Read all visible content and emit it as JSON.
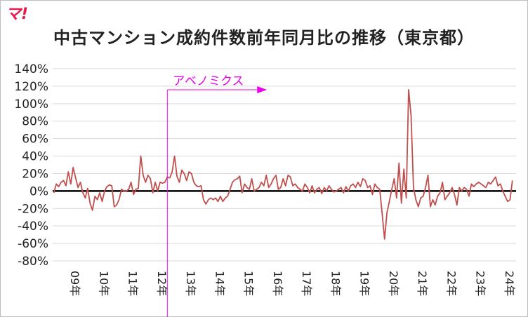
{
  "logo": "マ!",
  "chart_data": {
    "type": "line",
    "title": "中古マンション成約件数前年同月比の推移（東京都）",
    "y_tick_labels": [
      "140%",
      "120%",
      "100%",
      "80%",
      "60%",
      "40%",
      "20%",
      "0%",
      "-20%",
      "-40%",
      "-60%",
      "-80%"
    ],
    "x_tick_labels": [
      "09年",
      "10年",
      "11年",
      "12年",
      "13年",
      "14年",
      "15年",
      "16年",
      "17年",
      "18年",
      "19年",
      "20年",
      "21年",
      "22年",
      "23年",
      "24年"
    ],
    "ylim": [
      -80,
      140
    ],
    "grid": true,
    "legend": "none",
    "series": [
      {
        "color": "#c0504d",
        "start": "2009-01",
        "values": [
          -2,
          8,
          5,
          10,
          12,
          6,
          22,
          8,
          27,
          15,
          4,
          10,
          -2,
          -8,
          3,
          -14,
          -22,
          -6,
          -10,
          -2,
          -12,
          0,
          5,
          7,
          6,
          -18,
          -16,
          -10,
          2,
          0,
          0,
          2,
          10,
          -4,
          2,
          3,
          40,
          18,
          10,
          18,
          14,
          -2,
          10,
          0,
          10,
          9,
          10,
          16,
          15,
          22,
          40,
          17,
          10,
          24,
          20,
          12,
          22,
          20,
          10,
          6,
          5,
          6,
          -10,
          -15,
          -10,
          -8,
          -10,
          -8,
          -12,
          -6,
          -12,
          -8,
          -6,
          2,
          10,
          13,
          14,
          17,
          -2,
          8,
          4,
          2,
          14,
          0,
          2,
          4,
          10,
          6,
          18,
          4,
          8,
          14,
          18,
          2,
          4,
          14,
          6,
          18,
          16,
          6,
          8,
          4,
          2,
          0,
          8,
          4,
          -2,
          6,
          -2,
          2,
          4,
          -3,
          4,
          0,
          6,
          2,
          -1,
          0,
          2,
          4,
          -2,
          5,
          0,
          6,
          8,
          4,
          10,
          5,
          14,
          12,
          4,
          6,
          -4,
          8,
          4,
          2,
          -25,
          -55,
          -25,
          -12,
          2,
          14,
          -8,
          32,
          -14,
          25,
          -8,
          116,
          86,
          4,
          -10,
          -18,
          -8,
          -6,
          4,
          18,
          -18,
          -10,
          -16,
          -6,
          -2,
          10,
          -10,
          -6,
          -2,
          4,
          -4,
          -16,
          4,
          0,
          4,
          2,
          -6,
          8,
          5,
          8,
          10,
          8,
          6,
          4,
          10,
          8,
          12,
          16,
          6,
          8,
          0,
          -6,
          -12,
          -10,
          12
        ]
      }
    ],
    "annotations": [
      {
        "text": "アベノミクス",
        "x": "2012-12"
      }
    ]
  }
}
